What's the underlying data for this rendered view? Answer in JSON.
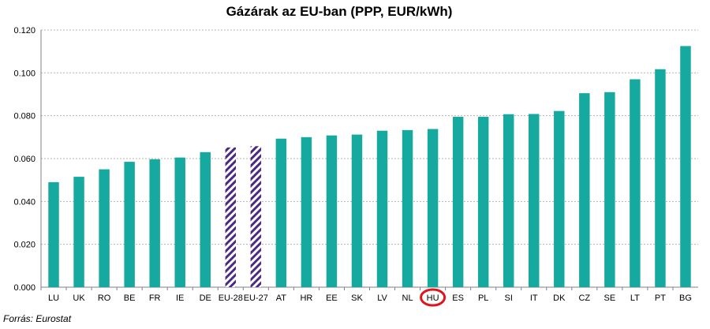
{
  "chart_data": {
    "type": "bar",
    "title": "Gázárak az EU-ban (PPP, EUR/kWh)",
    "source": "Forrás: Eurostat",
    "categories": [
      "LU",
      "UK",
      "RO",
      "BE",
      "FR",
      "IE",
      "DE",
      "EU-28",
      "EU-27",
      "AT",
      "HR",
      "EE",
      "SK",
      "LV",
      "NL",
      "HU",
      "ES",
      "PL",
      "SI",
      "IT",
      "DK",
      "CZ",
      "SE",
      "LT",
      "PT",
      "BG"
    ],
    "values": [
      0.049,
      0.0515,
      0.055,
      0.0585,
      0.0597,
      0.0605,
      0.063,
      0.0652,
      0.0658,
      0.0693,
      0.07,
      0.0708,
      0.0712,
      0.073,
      0.0733,
      0.0738,
      0.0795,
      0.0795,
      0.0807,
      0.0808,
      0.0822,
      0.0905,
      0.091,
      0.097,
      0.1017,
      0.1125
    ],
    "hatched_categories": [
      "EU-28",
      "EU-27"
    ],
    "highlighted_category": "HU",
    "ylim": [
      0,
      0.12
    ],
    "yticks": [
      "0.000",
      "0.020",
      "0.040",
      "0.060",
      "0.080",
      "0.100",
      "0.120"
    ],
    "grid": true,
    "colors": {
      "bar": "#16a9a0",
      "hatch": "#4b2a85",
      "highlight_circle": "#e0141b",
      "grid": "#b3b3b3"
    }
  }
}
